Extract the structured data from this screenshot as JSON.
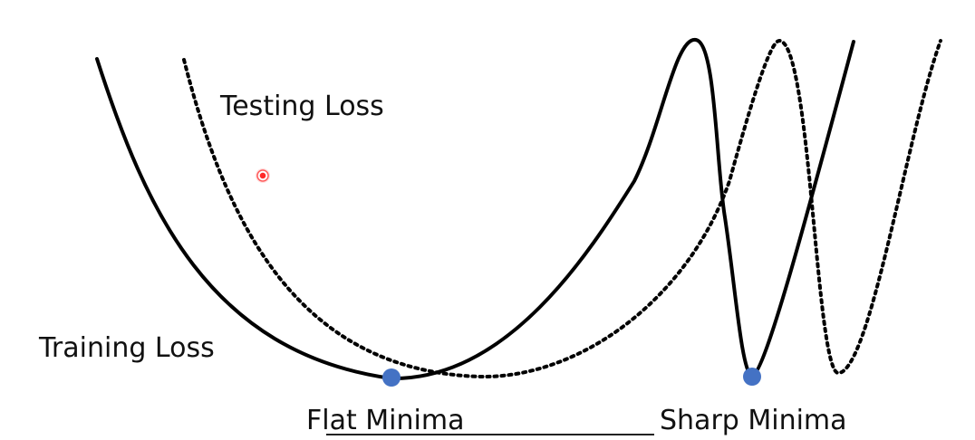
{
  "labels": {
    "testing_loss": "Testing Loss",
    "training_loss": "Training Loss",
    "flat_minima": "Flat Minima",
    "sharp_minima": "Sharp Minima"
  },
  "colors": {
    "curve": "#000000",
    "minima_marker": "#4472c4",
    "pointer": "#ff2a2a"
  },
  "curves": {
    "training_loss_style": "solid",
    "testing_loss_style": "dotted"
  },
  "markers": [
    "flat-minima-point",
    "sharp-minima-point"
  ]
}
